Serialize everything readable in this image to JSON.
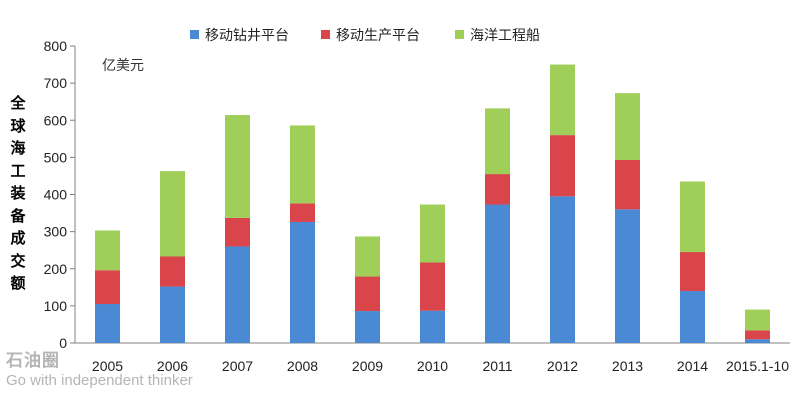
{
  "chart_data": {
    "type": "bar",
    "stacked": true,
    "categories": [
      "2005",
      "2006",
      "2007",
      "2008",
      "2009",
      "2010",
      "2011",
      "2012",
      "2013",
      "2014",
      "2015.1-10"
    ],
    "series": [
      {
        "name": "移动钻井平台",
        "color": "#4a8ad4",
        "values": [
          105,
          152,
          260,
          326,
          86,
          87,
          373,
          395,
          360,
          140,
          10
        ]
      },
      {
        "name": "移动生产平台",
        "color": "#d9454a",
        "values": [
          91,
          81,
          77,
          50,
          93,
          130,
          82,
          165,
          133,
          105,
          24
        ]
      },
      {
        "name": "海洋工程船",
        "color": "#9fcf58",
        "values": [
          107,
          230,
          277,
          210,
          108,
          156,
          177,
          190,
          180,
          190,
          56
        ]
      }
    ],
    "unit_label": "亿美元",
    "ylabel": "全球海工装备成交额",
    "ylim": [
      0,
      800
    ],
    "yticks": [
      0,
      100,
      200,
      300,
      400,
      500,
      600,
      700,
      800
    ],
    "legend_position": "top",
    "grid": false
  },
  "watermark": {
    "logo_text": "石油圈",
    "slogan": "Go with independent thinker"
  }
}
